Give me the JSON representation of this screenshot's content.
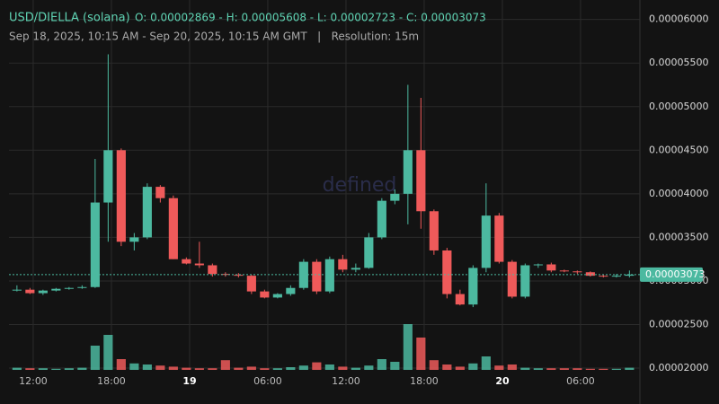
{
  "chart_data": {
    "type": "candlestick",
    "title": "USD/DIELLA (solana)",
    "ohlc_text": "O: 0.00002869 - H: 0.00005608 - L: 0.00002723 - C: 0.00003073",
    "subtitle": "Sep 18, 2025, 10:15 AM - Sep 20, 2025, 10:15 AM GMT   |   Resolution: 15m",
    "watermark": "defined",
    "up_color": "#4cb9a0",
    "down_color": "#ef5a5a",
    "open": [
      2.9e-05,
      2.9e-05,
      2.86e-05,
      2.89e-05,
      2.91e-05,
      2.92e-05,
      2.93e-05,
      3.9e-05,
      4.5e-05,
      3.45e-05,
      3.5e-05,
      4.08e-05,
      3.95e-05,
      3.25e-05,
      3.2e-05,
      3.18e-05,
      3.08e-05,
      3.07e-05,
      3.06e-05,
      2.88e-05,
      2.81e-05,
      2.85e-05,
      2.92e-05,
      3.22e-05,
      2.88e-05,
      3.25e-05,
      3.13e-05,
      3.15e-05,
      3.5e-05,
      3.92e-05,
      4e-05,
      4.5e-05,
      3.8e-05,
      3.35e-05,
      2.85e-05,
      2.73e-05,
      3.15e-05,
      3.75e-05,
      3.22e-05,
      2.82e-05,
      3.18e-05,
      3.19e-05,
      3.12e-05,
      3.11e-05,
      3.1e-05,
      3.06e-05,
      3.05e-05,
      3.06e-05
    ],
    "high": [
      2.95e-05,
      2.92e-05,
      2.9e-05,
      2.92e-05,
      2.93e-05,
      2.95e-05,
      4.4e-05,
      5.6e-05,
      4.52e-05,
      3.55e-05,
      4.12e-05,
      4.1e-05,
      3.98e-05,
      3.27e-05,
      3.45e-05,
      3.2e-05,
      3.1e-05,
      3.09e-05,
      3.07e-05,
      2.9e-05,
      2.86e-05,
      2.95e-05,
      3.25e-05,
      3.25e-05,
      3.28e-05,
      3.3e-05,
      3.2e-05,
      3.55e-05,
      3.95e-05,
      4.05e-05,
      5.25e-05,
      5.1e-05,
      3.82e-05,
      3.38e-05,
      2.9e-05,
      3.18e-05,
      4.12e-05,
      3.78e-05,
      3.24e-05,
      3.2e-05,
      3.2e-05,
      3.21e-05,
      3.13e-05,
      3.12e-05,
      3.11e-05,
      3.07e-05,
      3.08e-05,
      3.12e-05
    ],
    "low": [
      2.88e-05,
      2.85e-05,
      2.84e-05,
      2.88e-05,
      2.9e-05,
      2.91e-05,
      2.92e-05,
      3.45e-05,
      3.4e-05,
      3.35e-05,
      3.48e-05,
      3.9e-05,
      3.25e-05,
      3.19e-05,
      3.15e-05,
      3.05e-05,
      3.05e-05,
      3.04e-05,
      2.85e-05,
      2.8e-05,
      2.8e-05,
      2.83e-05,
      2.9e-05,
      2.85e-05,
      2.86e-05,
      3.1e-05,
      3.1e-05,
      3.14e-05,
      3.48e-05,
      3.88e-05,
      3.65e-05,
      3.6e-05,
      3.3e-05,
      2.8e-05,
      2.72e-05,
      2.7e-05,
      3.1e-05,
      3.2e-05,
      2.8e-05,
      2.8e-05,
      3.15e-05,
      3.1e-05,
      3.1e-05,
      3.08e-05,
      3.05e-05,
      3.04e-05,
      3.04e-05,
      3.04e-05
    ],
    "close": [
      2.9e-05,
      2.86e-05,
      2.89e-05,
      2.91e-05,
      2.92e-05,
      2.93e-05,
      3.9e-05,
      4.5e-05,
      3.45e-05,
      3.5e-05,
      4.08e-05,
      3.95e-05,
      3.25e-05,
      3.2e-05,
      3.18e-05,
      3.08e-05,
      3.07e-05,
      3.06e-05,
      2.88e-05,
      2.81e-05,
      2.85e-05,
      2.92e-05,
      3.22e-05,
      2.88e-05,
      3.25e-05,
      3.13e-05,
      3.15e-05,
      3.5e-05,
      3.92e-05,
      4e-05,
      4.5e-05,
      3.8e-05,
      3.35e-05,
      2.85e-05,
      2.73e-05,
      3.15e-05,
      3.75e-05,
      3.22e-05,
      2.82e-05,
      3.18e-05,
      3.19e-05,
      3.12e-05,
      3.11e-05,
      3.1e-05,
      3.06e-05,
      3.05e-05,
      3.06e-05,
      3.073e-05
    ],
    "volume": [
      4,
      3,
      3,
      2,
      3,
      4,
      45,
      65,
      20,
      12,
      10,
      8,
      6,
      4,
      3,
      3,
      18,
      4,
      6,
      3,
      3,
      5,
      8,
      14,
      10,
      6,
      4,
      8,
      20,
      15,
      85,
      60,
      18,
      10,
      6,
      12,
      25,
      8,
      10,
      4,
      3,
      3,
      3,
      3,
      2,
      2,
      2,
      4
    ],
    "vlim": [
      0,
      100
    ],
    "xlim": [
      0,
      48
    ],
    "xticks": [
      {
        "value": 1.75,
        "label": "12:00"
      },
      {
        "value": 7.75,
        "label": "18:00"
      },
      {
        "value": 13.75,
        "label": "19"
      },
      {
        "value": 19.75,
        "label": "06:00"
      },
      {
        "value": 25.75,
        "label": "12:00"
      },
      {
        "value": 31.75,
        "label": "18:00"
      },
      {
        "value": 37.75,
        "label": "20"
      },
      {
        "value": 43.75,
        "label": "06:00"
      }
    ],
    "ylim": [
      1.98e-05,
      6.12e-05
    ],
    "yticks": [
      {
        "value": 2e-05,
        "label": "0.00002000"
      },
      {
        "value": 2.5e-05,
        "label": "0.00002500"
      },
      {
        "value": 3e-05,
        "label": "0.00003000"
      },
      {
        "value": 3.5e-05,
        "label": "0.00003500"
      },
      {
        "value": 4e-05,
        "label": "0.00004000"
      },
      {
        "value": 4.5e-05,
        "label": "0.00004500"
      },
      {
        "value": 5e-05,
        "label": "0.00005000"
      },
      {
        "value": 5.5e-05,
        "label": "0.00005500"
      },
      {
        "value": 6e-05,
        "label": "0.00006000"
      }
    ],
    "last_price": {
      "value": 3.073e-05,
      "label": "0.00003073"
    },
    "grid": true
  }
}
